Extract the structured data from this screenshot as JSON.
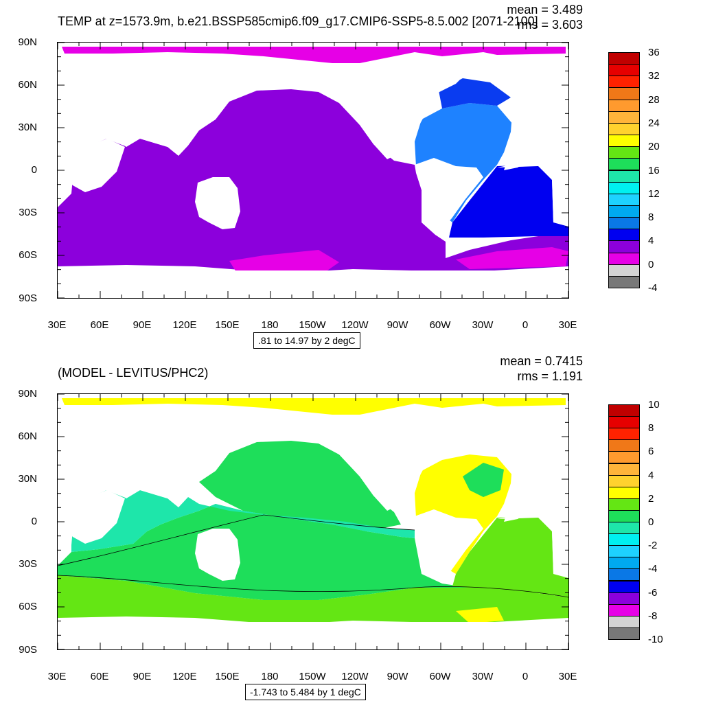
{
  "top": {
    "title": "TEMP at z=1573.9m, b.e21.BSSP585cmip6.f09_g17.CMIP6-SSP5-8.5.002 [2071-2100]",
    "mean": "mean = 3.489",
    "rms": "rms = 3.603",
    "range": ".81 to 14.97 by 2 degC",
    "colorbar": {
      "labels": [
        "36",
        "32",
        "28",
        "24",
        "20",
        "16",
        "12",
        "8",
        "4",
        "0",
        "-4"
      ],
      "colors": [
        "#c00000",
        "#e60000",
        "#ff2200",
        "#f07818",
        "#ff9a2e",
        "#ffb43a",
        "#ffd22e",
        "#ffff00",
        "#64e614",
        "#1ede5a",
        "#1ee6aa",
        "#00f0f0",
        "#1ed2ff",
        "#00aaf0",
        "#0a78e6",
        "#0000f0",
        "#8c00dc",
        "#e600e6",
        "#d3d3d3",
        "#787878"
      ]
    }
  },
  "bottom": {
    "title": "(MODEL - LEVITUS/PHC2)",
    "mean": "mean = 0.7415",
    "rms": "rms = 1.191",
    "range": "-1.743 to 5.484 by 1 degC",
    "colorbar": {
      "labels": [
        "10",
        "8",
        "6",
        "4",
        "2",
        "0",
        "-2",
        "-4",
        "-6",
        "-8",
        "-10"
      ],
      "colors": [
        "#c00000",
        "#e60000",
        "#ff2200",
        "#f07818",
        "#ff9a2e",
        "#ffb43a",
        "#ffd22e",
        "#ffff00",
        "#64e614",
        "#1ede5a",
        "#1ee6aa",
        "#00f0f0",
        "#1ed2ff",
        "#00aaf0",
        "#0a78e6",
        "#0000f0",
        "#8c00dc",
        "#e600e6",
        "#d3d3d3",
        "#787878"
      ]
    }
  },
  "axes": {
    "lat_labels": [
      "90N",
      "60N",
      "30N",
      "0",
      "30S",
      "60S",
      "90S"
    ],
    "lon_labels": [
      "30E",
      "60E",
      "90E",
      "120E",
      "150E",
      "180",
      "150W",
      "120W",
      "90W",
      "60W",
      "30W",
      "0",
      "30E"
    ]
  }
}
